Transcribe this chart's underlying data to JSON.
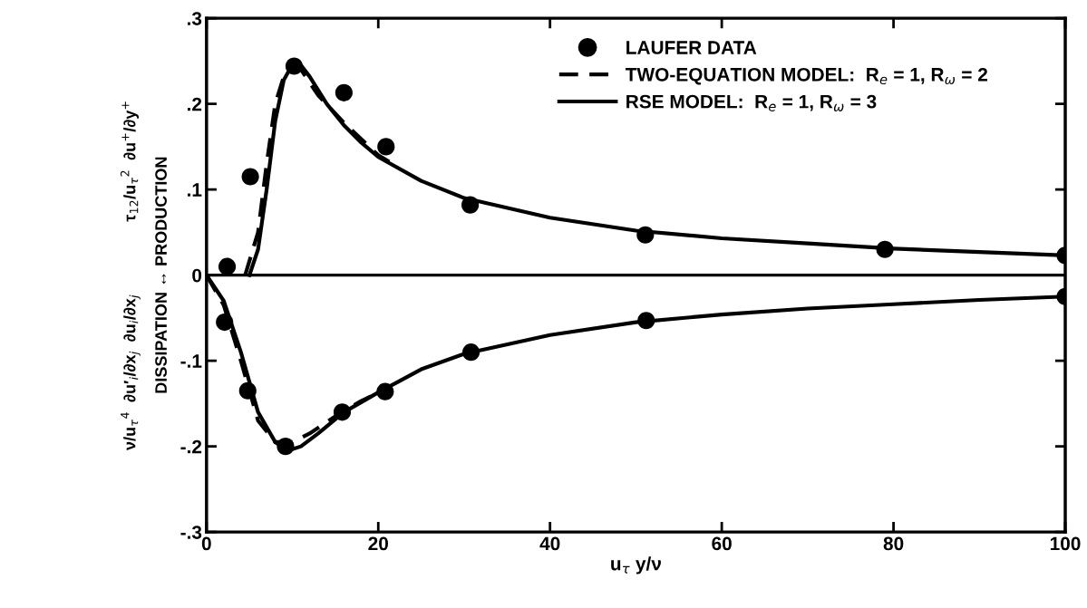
{
  "chart_data": {
    "type": "line",
    "xlabel": "u$_{τ}$ y/ν",
    "ylabel": "ν/u$_{τ}$$^{4}$  ∂u′$_{i}$/∂x$_{j}$  ∂u$_{i}$/∂x$_{j}$                τ$_{12}$/u$_{τ}$$^{2}$  ∂u$^{+}$/∂y$^{+}$\nDISSIPATION ↔ PRODUCTION",
    "xlim": [
      0,
      100
    ],
    "xticks": [
      0,
      20,
      40,
      60,
      80,
      100
    ],
    "ylim": [
      -0.3,
      0.3
    ],
    "yticks": [
      {
        "value": -0.3,
        "label": "-.3"
      },
      {
        "value": -0.2,
        "label": "-.2"
      },
      {
        "value": -0.1,
        "label": "-.1"
      },
      0,
      {
        "value": 0.1,
        "label": ".1"
      },
      {
        "value": 0.2,
        "label": ".2"
      },
      {
        "value": 0.3,
        "label": ".3"
      }
    ],
    "grid": false,
    "legend": "top right",
    "ref_lines": [
      {
        "axis": "y",
        "value": 0,
        "color": "#000000",
        "line_style": "solid"
      }
    ],
    "series": [
      {
        "name": "LAUFER DATA",
        "type": "scatter",
        "marker": "circle",
        "color": "#000000",
        "x": [
          2.4,
          5.1,
          10.2,
          16,
          20.9,
          30.7,
          51.1,
          79,
          100,
          2.1,
          4.8,
          9.2,
          15.8,
          20.8,
          30.8,
          51.2,
          100
        ],
        "values": [
          0.01,
          0.115,
          0.244,
          0.213,
          0.15,
          0.082,
          0.047,
          0.03,
          0.023,
          -0.055,
          -0.135,
          -0.2,
          -0.16,
          -0.136,
          -0.09,
          -0.053,
          -0.025
        ]
      },
      {
        "name": "TWO-EQUATION MODEL:  R$_{e}$ = 1, R$_{ω}$ = 2",
        "line_style": "dashed",
        "color": "#000000",
        "x": [
          4.5,
          6,
          7,
          8,
          9,
          10,
          11,
          13,
          16,
          20,
          22
        ],
        "values": [
          0,
          0.05,
          0.13,
          0.2,
          0.232,
          0.24,
          0.24,
          0.21,
          0.178,
          0.14,
          0.128
        ]
      },
      {
        "line_style": "dashed",
        "color": "#000000",
        "x": [
          0,
          2,
          4,
          6,
          8,
          10,
          12,
          15,
          18,
          21
        ],
        "values": [
          0,
          -0.035,
          -0.1,
          -0.17,
          -0.195,
          -0.195,
          -0.185,
          -0.165,
          -0.147,
          -0.133
        ]
      },
      {
        "name": "RSE MODEL:  R$_{e}$ = 1, R$_{ω}$ = 3",
        "line_style": "solid",
        "color": "#000000",
        "x": [
          5,
          6,
          7,
          8,
          9,
          10,
          11,
          12,
          14,
          16,
          18,
          20,
          25,
          30,
          40,
          50,
          60,
          70,
          80,
          90,
          100
        ],
        "values": [
          0,
          0.03,
          0.1,
          0.18,
          0.228,
          0.246,
          0.245,
          0.232,
          0.2,
          0.175,
          0.155,
          0.138,
          0.11,
          0.09,
          0.067,
          0.052,
          0.043,
          0.037,
          0.031,
          0.027,
          0.023
        ]
      },
      {
        "line_style": "solid",
        "color": "#000000",
        "x": [
          0,
          2,
          4,
          6,
          8,
          9.5,
          11,
          13,
          16,
          20,
          25,
          30,
          40,
          50,
          60,
          70,
          80,
          90,
          100
        ],
        "values": [
          0,
          -0.03,
          -0.09,
          -0.16,
          -0.195,
          -0.205,
          -0.2,
          -0.185,
          -0.16,
          -0.137,
          -0.11,
          -0.092,
          -0.07,
          -0.055,
          -0.046,
          -0.039,
          -0.034,
          -0.029,
          -0.025
        ]
      }
    ]
  }
}
